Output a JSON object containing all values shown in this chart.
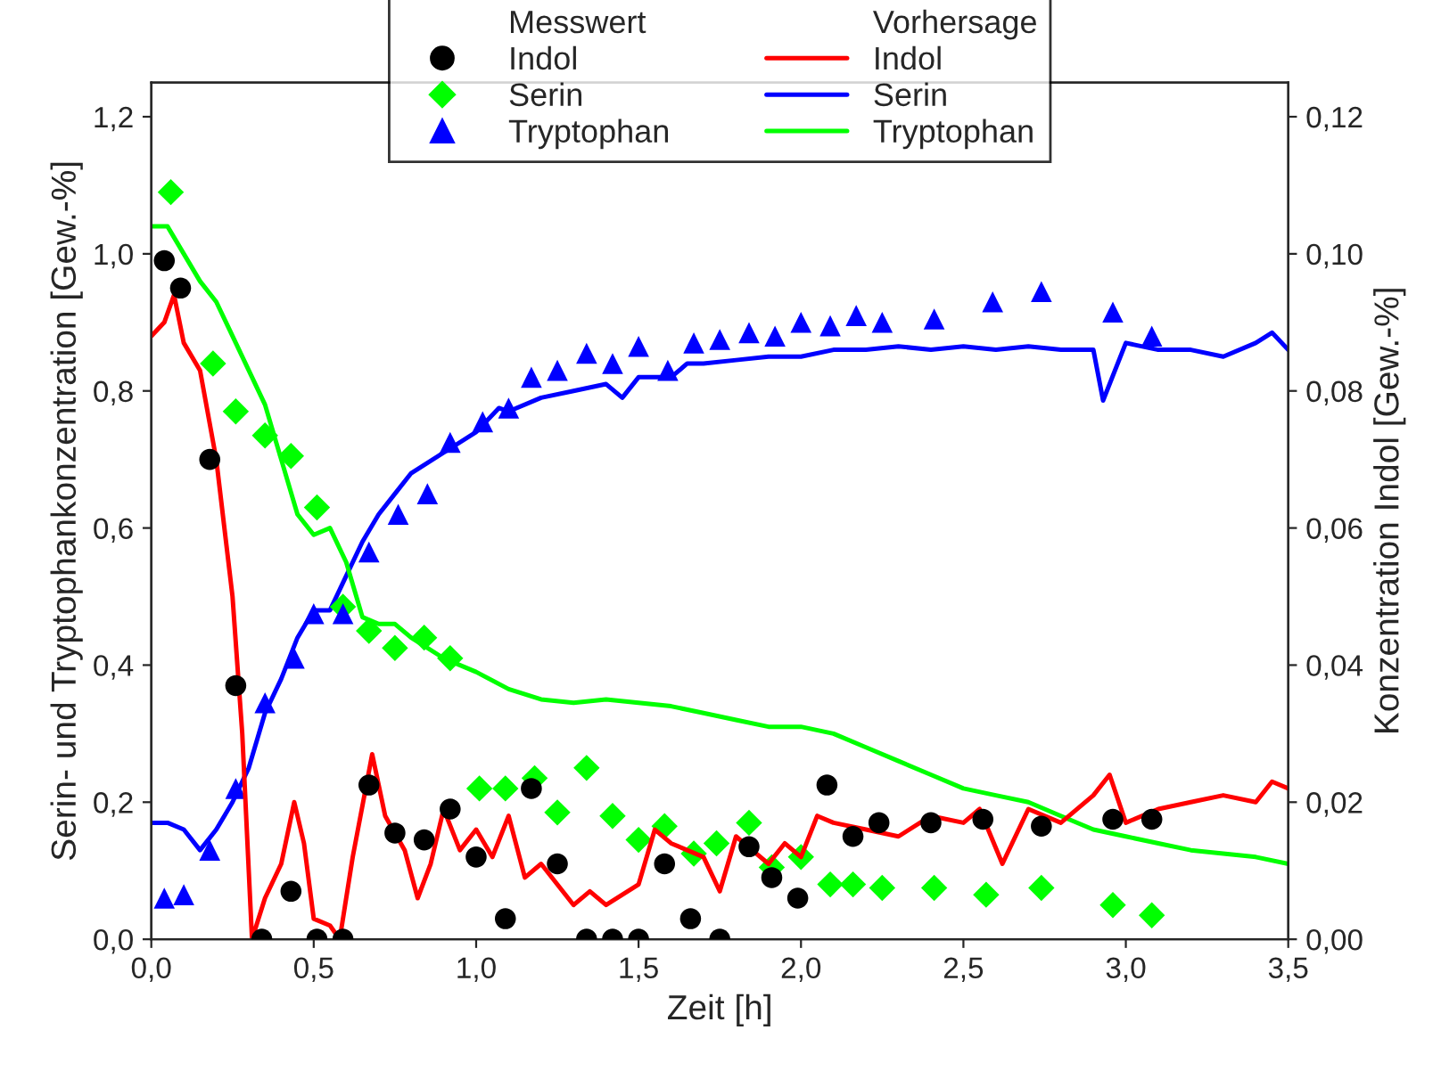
{
  "chart_data": {
    "type": "scatter",
    "xlabel": "Zeit [h]",
    "ylabel": "Serin- und Tryptophankonzentration [Gew.-%]",
    "y2label": "Konzentration Indol [Gew.-%]",
    "annotations": [
      "Messwert",
      "Vorhersage"
    ],
    "xlim": [
      0,
      3.5
    ],
    "xticks": [
      {
        "value": 0,
        "label": "0,0"
      },
      {
        "value": 0.5,
        "label": "0,5"
      },
      {
        "value": 1,
        "label": "1,0"
      },
      {
        "value": 1.5,
        "label": "1,5"
      },
      {
        "value": 2,
        "label": "2,0"
      },
      {
        "value": 2.5,
        "label": "2,5"
      },
      {
        "value": 3,
        "label": "3,0"
      },
      {
        "value": 3.5,
        "label": "3,5"
      }
    ],
    "ylim": [
      0,
      1.25
    ],
    "yticks": [
      {
        "value": 0,
        "label": "0,0"
      },
      {
        "value": 0.2,
        "label": "0,2"
      },
      {
        "value": 0.4,
        "label": "0,4"
      },
      {
        "value": 0.6,
        "label": "0,6"
      },
      {
        "value": 0.8,
        "label": "0,8"
      },
      {
        "value": 1,
        "label": "1,0"
      },
      {
        "value": 1.2,
        "label": "1,2"
      }
    ],
    "y2lim": [
      0,
      0.125
    ],
    "y2ticks": [
      {
        "value": 0,
        "label": "0,00"
      },
      {
        "value": 0.02,
        "label": "0,02"
      },
      {
        "value": 0.04,
        "label": "0,04"
      },
      {
        "value": 0.06,
        "label": "0,06"
      },
      {
        "value": 0.08,
        "label": "0,08"
      },
      {
        "value": 0.1,
        "label": "0,10"
      },
      {
        "value": 0.12,
        "label": "0,12"
      }
    ],
    "legend": "top",
    "grid": false,
    "series": [
      {
        "name": "Indol",
        "marker": "circle",
        "axis": "y2",
        "color": "#000000",
        "x": [
          0.04,
          0.09,
          0.18,
          0.26,
          0.34,
          0.43,
          0.51,
          0.59,
          0.67,
          0.75,
          0.84,
          0.92,
          1.0,
          1.09,
          1.17,
          1.25,
          1.34,
          1.42,
          1.5,
          1.58,
          1.66,
          1.75,
          1.84,
          1.91,
          1.99,
          2.08,
          2.16,
          2.24,
          2.4,
          2.56,
          2.74,
          2.96,
          3.08
        ],
        "values": [
          0.099,
          0.095,
          0.07,
          0.037,
          0,
          0.007,
          0,
          0,
          0.0225,
          0.0155,
          0.0145,
          0.019,
          0.012,
          0.003,
          0.022,
          0.011,
          0,
          0,
          0,
          0.011,
          0.003,
          0,
          0.0135,
          0.009,
          0.006,
          0.0225,
          0.015,
          0.017,
          0.017,
          0.0175,
          0.0165,
          0.0175,
          0.0175
        ]
      },
      {
        "name": "Serin",
        "marker": "diamond",
        "color": "#00ff00",
        "x": [
          0.06,
          0.19,
          0.26,
          0.35,
          0.43,
          0.51,
          0.59,
          0.67,
          0.75,
          0.84,
          0.92,
          1.01,
          1.09,
          1.18,
          1.25,
          1.34,
          1.42,
          1.5,
          1.58,
          1.67,
          1.74,
          1.84,
          1.91,
          2.0,
          2.09,
          2.16,
          2.25,
          2.41,
          2.57,
          2.74,
          2.96,
          3.08
        ],
        "values": [
          1.09,
          0.84,
          0.77,
          0.735,
          0.705,
          0.63,
          0.485,
          0.45,
          0.425,
          0.44,
          0.41,
          0.22,
          0.22,
          0.235,
          0.185,
          0.25,
          0.18,
          0.145,
          0.165,
          0.125,
          0.14,
          0.17,
          0.105,
          0.12,
          0.08,
          0.08,
          0.075,
          0.075,
          0.065,
          0.075,
          0.05,
          0.035
        ]
      },
      {
        "name": "Tryptophan",
        "marker": "triangle",
        "color": "#0000ff",
        "x": [
          0.04,
          0.1,
          0.18,
          0.26,
          0.35,
          0.44,
          0.5,
          0.59,
          0.67,
          0.76,
          0.85,
          0.92,
          1.02,
          1.1,
          1.17,
          1.25,
          1.34,
          1.42,
          1.5,
          1.59,
          1.67,
          1.75,
          1.84,
          1.92,
          2.0,
          2.09,
          2.17,
          2.25,
          2.41,
          2.59,
          2.74,
          2.96,
          3.08
        ],
        "values": [
          0.06,
          0.065,
          0.13,
          0.22,
          0.345,
          0.41,
          0.475,
          0.475,
          0.565,
          0.62,
          0.65,
          0.725,
          0.755,
          0.775,
          0.82,
          0.83,
          0.855,
          0.84,
          0.865,
          0.83,
          0.87,
          0.875,
          0.885,
          0.88,
          0.9,
          0.895,
          0.91,
          0.9,
          0.905,
          0.93,
          0.945,
          0.915,
          0.88
        ]
      },
      {
        "name": "Indol",
        "type": "line",
        "marker": "none",
        "line_style": "solid",
        "axis": "y2",
        "color": "#ff0000",
        "x": [
          0,
          0.04,
          0.07,
          0.1,
          0.15,
          0.2,
          0.25,
          0.28,
          0.31,
          0.35,
          0.4,
          0.44,
          0.47,
          0.5,
          0.55,
          0.58,
          0.62,
          0.68,
          0.72,
          0.78,
          0.82,
          0.86,
          0.9,
          0.95,
          1.0,
          1.05,
          1.1,
          1.15,
          1.2,
          1.3,
          1.35,
          1.4,
          1.5,
          1.55,
          1.6,
          1.7,
          1.75,
          1.8,
          1.85,
          1.9,
          1.95,
          2.0,
          2.05,
          2.1,
          2.2,
          2.3,
          2.4,
          2.5,
          2.55,
          2.62,
          2.7,
          2.8,
          2.9,
          2.95,
          3.0,
          3.1,
          3.2,
          3.3,
          3.4,
          3.45,
          3.5
        ],
        "values": [
          0.088,
          0.09,
          0.094,
          0.087,
          0.083,
          0.07,
          0.05,
          0.03,
          0.0,
          0.006,
          0.011,
          0.02,
          0.014,
          0.003,
          0.002,
          0.0,
          0.012,
          0.027,
          0.018,
          0.013,
          0.006,
          0.011,
          0.019,
          0.013,
          0.016,
          0.012,
          0.018,
          0.009,
          0.011,
          0.005,
          0.007,
          0.005,
          0.008,
          0.016,
          0.014,
          0.012,
          0.007,
          0.015,
          0.013,
          0.011,
          0.014,
          0.012,
          0.018,
          0.017,
          0.016,
          0.015,
          0.018,
          0.017,
          0.019,
          0.011,
          0.019,
          0.017,
          0.021,
          0.024,
          0.017,
          0.019,
          0.02,
          0.021,
          0.02,
          0.023,
          0.022
        ]
      },
      {
        "name": "Serin",
        "type": "line",
        "marker": "none",
        "line_style": "solid",
        "color": "#0000ff",
        "x": [
          0,
          0.05,
          0.1,
          0.15,
          0.2,
          0.25,
          0.3,
          0.35,
          0.4,
          0.45,
          0.5,
          0.55,
          0.6,
          0.65,
          0.7,
          0.75,
          0.8,
          0.9,
          1.0,
          1.07,
          1.1,
          1.2,
          1.3,
          1.4,
          1.45,
          1.5,
          1.6,
          1.65,
          1.7,
          1.8,
          1.9,
          2.0,
          2.1,
          2.2,
          2.3,
          2.4,
          2.5,
          2.6,
          2.7,
          2.8,
          2.9,
          2.93,
          3.0,
          3.1,
          3.2,
          3.3,
          3.4,
          3.45,
          3.5
        ],
        "values": [
          0.17,
          0.17,
          0.16,
          0.13,
          0.16,
          0.2,
          0.25,
          0.33,
          0.38,
          0.44,
          0.48,
          0.48,
          0.53,
          0.58,
          0.62,
          0.65,
          0.68,
          0.71,
          0.74,
          0.775,
          0.77,
          0.79,
          0.8,
          0.81,
          0.79,
          0.82,
          0.82,
          0.84,
          0.84,
          0.845,
          0.85,
          0.85,
          0.86,
          0.86,
          0.865,
          0.86,
          0.865,
          0.86,
          0.865,
          0.86,
          0.86,
          0.786,
          0.87,
          0.86,
          0.86,
          0.85,
          0.87,
          0.885,
          0.86
        ]
      },
      {
        "name": "Tryptophan",
        "type": "line",
        "marker": "none",
        "line_style": "solid",
        "color": "#00ff00",
        "x": [
          0,
          0.05,
          0.1,
          0.15,
          0.2,
          0.25,
          0.3,
          0.35,
          0.4,
          0.45,
          0.5,
          0.55,
          0.6,
          0.65,
          0.7,
          0.75,
          0.8,
          0.9,
          1.0,
          1.1,
          1.2,
          1.3,
          1.4,
          1.5,
          1.6,
          1.7,
          1.8,
          1.9,
          2.0,
          2.1,
          2.2,
          2.3,
          2.4,
          2.5,
          2.6,
          2.7,
          2.8,
          2.9,
          3.0,
          3.1,
          3.2,
          3.3,
          3.4,
          3.5
        ],
        "values": [
          1.04,
          1.04,
          1.0,
          0.96,
          0.93,
          0.88,
          0.83,
          0.78,
          0.7,
          0.62,
          0.59,
          0.6,
          0.55,
          0.47,
          0.46,
          0.46,
          0.44,
          0.41,
          0.39,
          0.365,
          0.35,
          0.345,
          0.35,
          0.345,
          0.34,
          0.33,
          0.32,
          0.31,
          0.31,
          0.3,
          0.28,
          0.26,
          0.24,
          0.22,
          0.21,
          0.2,
          0.18,
          0.16,
          0.15,
          0.14,
          0.13,
          0.125,
          0.12,
          0.11
        ]
      }
    ]
  }
}
